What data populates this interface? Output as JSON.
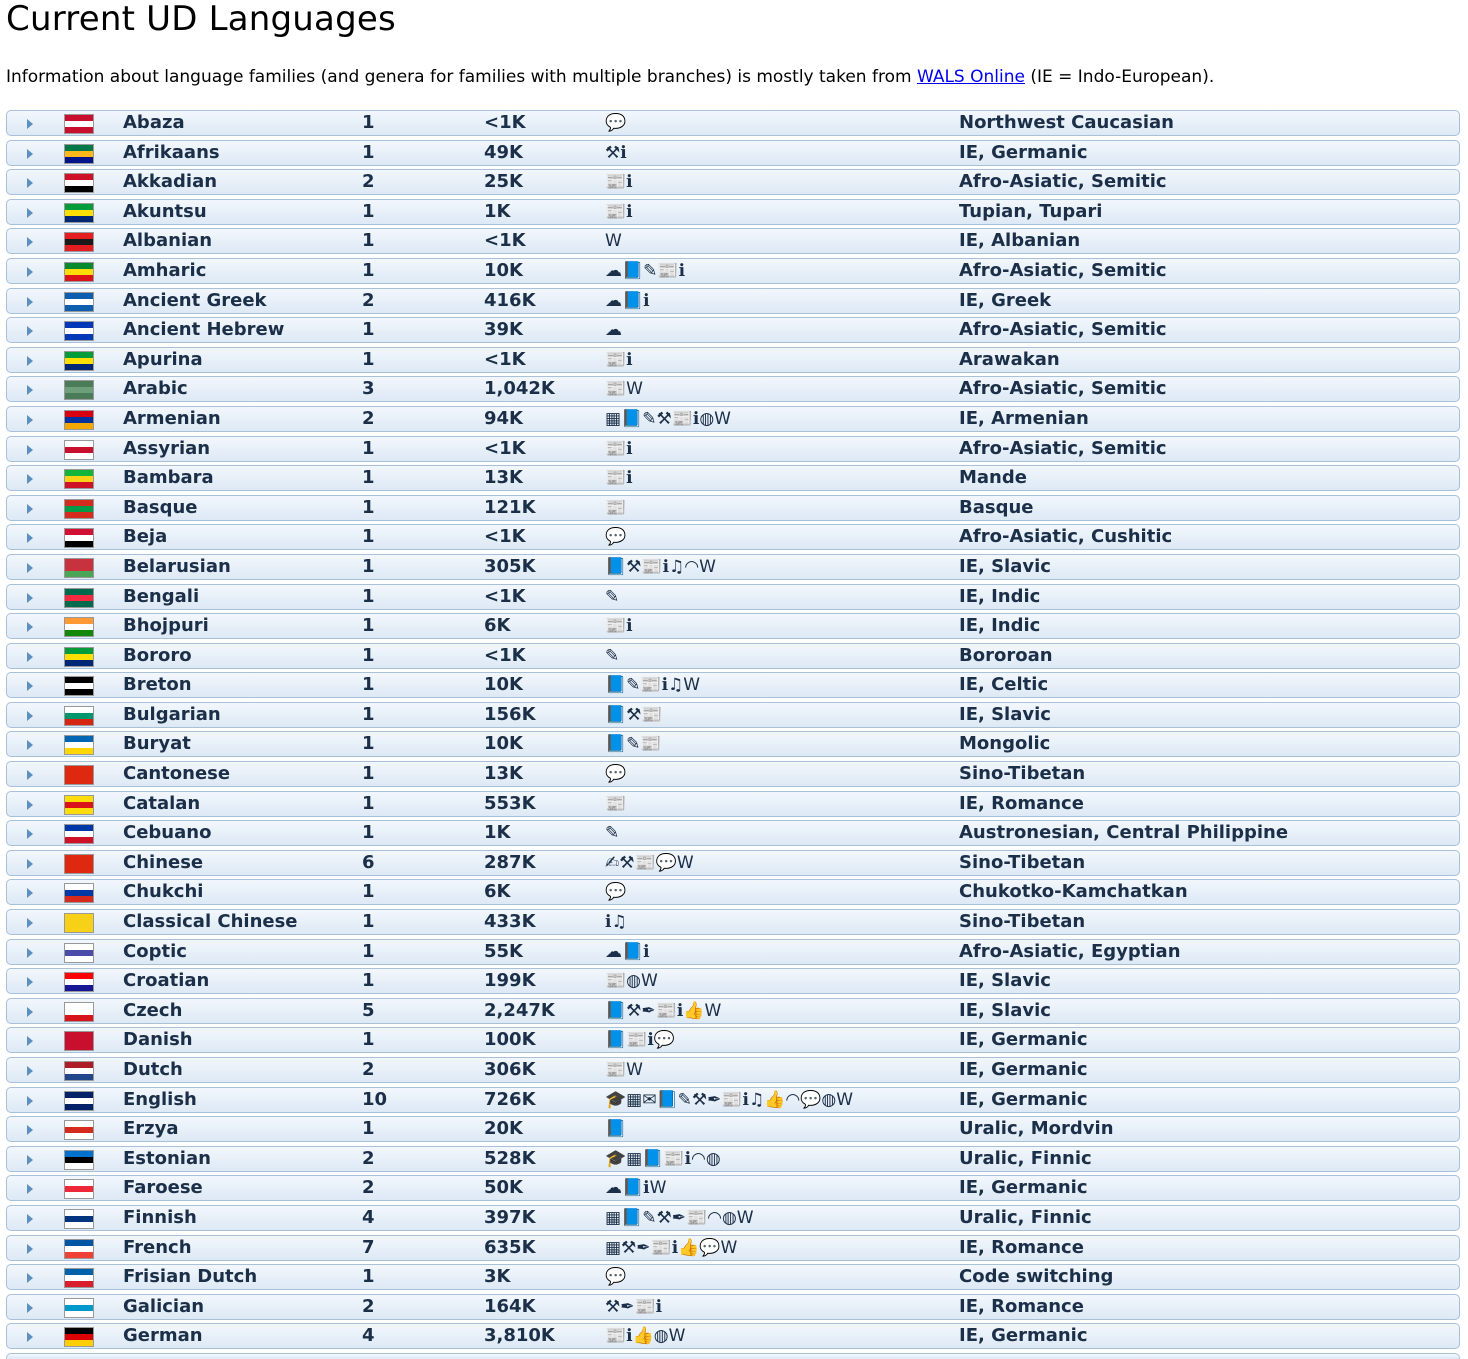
{
  "title": "Current UD Languages",
  "intro": {
    "before": "Information about language families (and genera for families with multiple branches) is mostly taken from ",
    "link": "WALS Online",
    "after": " (IE = Indo-European)."
  },
  "rows": [
    {
      "name": "Abaza",
      "count": "1",
      "size": "<1K",
      "icons": "💬",
      "family": "Northwest Caucasian",
      "flag": [
        "#c8102e",
        "#ffffff",
        "#c8102e"
      ]
    },
    {
      "name": "Afrikaans",
      "count": "1",
      "size": "49K",
      "icons": "⚒ℹ",
      "family": "IE, Germanic",
      "flag": [
        "#007749",
        "#ffb81c",
        "#001489"
      ]
    },
    {
      "name": "Akkadian",
      "count": "2",
      "size": "25K",
      "icons": "📰ℹ",
      "family": "Afro-Asiatic, Semitic",
      "flag": [
        "#ce1126",
        "#ffffff",
        "#000000"
      ]
    },
    {
      "name": "Akuntsu",
      "count": "1",
      "size": "1K",
      "icons": "📰ℹ",
      "family": "Tupian, Tupari",
      "flag": [
        "#009c3b",
        "#ffdf00",
        "#002776"
      ]
    },
    {
      "name": "Albanian",
      "count": "1",
      "size": "<1K",
      "icons": "W",
      "family": "IE, Albanian",
      "flag": [
        "#e41e20",
        "#1a1a1a",
        "#e41e20"
      ]
    },
    {
      "name": "Amharic",
      "count": "1",
      "size": "10K",
      "icons": "☁📘✎📰ℹ",
      "family": "Afro-Asiatic, Semitic",
      "flag": [
        "#078930",
        "#fcdd09",
        "#da121a"
      ]
    },
    {
      "name": "Ancient Greek",
      "count": "2",
      "size": "416K",
      "icons": "☁📘ℹ",
      "family": "IE, Greek",
      "flag": [
        "#0d5eaf",
        "#ffffff",
        "#0d5eaf"
      ]
    },
    {
      "name": "Ancient Hebrew",
      "count": "1",
      "size": "39K",
      "icons": "☁",
      "family": "Afro-Asiatic, Semitic",
      "flag": [
        "#0038b8",
        "#ffffff",
        "#0038b8"
      ]
    },
    {
      "name": "Apurina",
      "count": "1",
      "size": "<1K",
      "icons": "📰ℹ",
      "family": "Arawakan",
      "flag": [
        "#009c3b",
        "#ffdf00",
        "#002776"
      ]
    },
    {
      "name": "Arabic",
      "count": "3",
      "size": "1,042K",
      "icons": "📰W",
      "family": "Afro-Asiatic, Semitic",
      "flag": [
        "#4a7c59",
        "#6f9e7a",
        "#4a7c59"
      ]
    },
    {
      "name": "Armenian",
      "count": "2",
      "size": "94K",
      "icons": "▦📘✎⚒📰ℹ◍W",
      "family": "IE, Armenian",
      "flag": [
        "#d90012",
        "#0033a0",
        "#f2a800"
      ]
    },
    {
      "name": "Assyrian",
      "count": "1",
      "size": "<1K",
      "icons": "📰ℹ",
      "family": "Afro-Asiatic, Semitic",
      "flag": [
        "#ffffff",
        "#c8102e",
        "#ffffff"
      ]
    },
    {
      "name": "Bambara",
      "count": "1",
      "size": "13K",
      "icons": "📰ℹ",
      "family": "Mande",
      "flag": [
        "#14b53a",
        "#fcd116",
        "#ce1126"
      ]
    },
    {
      "name": "Basque",
      "count": "1",
      "size": "121K",
      "icons": "📰",
      "family": "Basque",
      "flag": [
        "#d52b1e",
        "#009b48",
        "#d52b1e"
      ]
    },
    {
      "name": "Beja",
      "count": "1",
      "size": "<1K",
      "icons": "💬",
      "family": "Afro-Asiatic, Cushitic",
      "flag": [
        "#d21034",
        "#ffffff",
        "#000000"
      ]
    },
    {
      "name": "Belarusian",
      "count": "1",
      "size": "305K",
      "icons": "📘⚒📰ℹ♫◠W",
      "family": "IE, Slavic",
      "flag": [
        "#c8313e",
        "#c8313e",
        "#4aa657"
      ]
    },
    {
      "name": "Bengali",
      "count": "1",
      "size": "<1K",
      "icons": "✎",
      "family": "IE, Indic",
      "flag": [
        "#006a4e",
        "#f42a41",
        "#006a4e"
      ]
    },
    {
      "name": "Bhojpuri",
      "count": "1",
      "size": "6K",
      "icons": "📰ℹ",
      "family": "IE, Indic",
      "flag": [
        "#ff9933",
        "#ffffff",
        "#138808"
      ]
    },
    {
      "name": "Bororo",
      "count": "1",
      "size": "<1K",
      "icons": "✎",
      "family": "Bororoan",
      "flag": [
        "#009c3b",
        "#ffdf00",
        "#002776"
      ]
    },
    {
      "name": "Breton",
      "count": "1",
      "size": "10K",
      "icons": "📘✎📰ℹ♫W",
      "family": "IE, Celtic",
      "flag": [
        "#000000",
        "#ffffff",
        "#000000"
      ]
    },
    {
      "name": "Bulgarian",
      "count": "1",
      "size": "156K",
      "icons": "📘⚒📰",
      "family": "IE, Slavic",
      "flag": [
        "#ffffff",
        "#00966e",
        "#d62612"
      ]
    },
    {
      "name": "Buryat",
      "count": "1",
      "size": "10K",
      "icons": "📘✎📰",
      "family": "Mongolic",
      "flag": [
        "#0066b3",
        "#ffffff",
        "#ffd700"
      ]
    },
    {
      "name": "Cantonese",
      "count": "1",
      "size": "13K",
      "icons": "💬",
      "family": "Sino-Tibetan",
      "flag": [
        "#de2910",
        "#de2910",
        "#de2910"
      ]
    },
    {
      "name": "Catalan",
      "count": "1",
      "size": "553K",
      "icons": "📰",
      "family": "IE, Romance",
      "flag": [
        "#fcdd09",
        "#da121a",
        "#fcdd09"
      ]
    },
    {
      "name": "Cebuano",
      "count": "1",
      "size": "1K",
      "icons": "✎",
      "family": "Austronesian, Central Philippine",
      "flag": [
        "#0038a8",
        "#ffffff",
        "#ce1126"
      ]
    },
    {
      "name": "Chinese",
      "count": "6",
      "size": "287K",
      "icons": "✍⚒📰💬W",
      "family": "Sino-Tibetan",
      "flag": [
        "#de2910",
        "#de2910",
        "#de2910"
      ]
    },
    {
      "name": "Chukchi",
      "count": "1",
      "size": "6K",
      "icons": "💬",
      "family": "Chukotko-Kamchatkan",
      "flag": [
        "#ffffff",
        "#0039a6",
        "#d52b1e"
      ]
    },
    {
      "name": "Classical Chinese",
      "count": "1",
      "size": "433K",
      "icons": "ℹ♫",
      "family": "Sino-Tibetan",
      "flag": [
        "#f7d117",
        "#f7d117",
        "#f7d117"
      ]
    },
    {
      "name": "Coptic",
      "count": "1",
      "size": "55K",
      "icons": "☁📘ℹ",
      "family": "Afro-Asiatic, Egyptian",
      "flag": [
        "#ffffff",
        "#4b4ba8",
        "#ffffff"
      ]
    },
    {
      "name": "Croatian",
      "count": "1",
      "size": "199K",
      "icons": "📰◍W",
      "family": "IE, Slavic",
      "flag": [
        "#ff0000",
        "#ffffff",
        "#171796"
      ]
    },
    {
      "name": "Czech",
      "count": "5",
      "size": "2,247K",
      "icons": "📘⚒✒📰ℹ👍W",
      "family": "IE, Slavic",
      "flag": [
        "#ffffff",
        "#ffffff",
        "#d7141a"
      ]
    },
    {
      "name": "Danish",
      "count": "1",
      "size": "100K",
      "icons": "📘📰ℹ💬",
      "family": "IE, Germanic",
      "flag": [
        "#c8102e",
        "#c8102e",
        "#c8102e"
      ]
    },
    {
      "name": "Dutch",
      "count": "2",
      "size": "306K",
      "icons": "📰W",
      "family": "IE, Germanic",
      "flag": [
        "#ae1c28",
        "#ffffff",
        "#21468b"
      ]
    },
    {
      "name": "English",
      "count": "10",
      "size": "726K",
      "icons": "🎓▦✉📘✎⚒✒📰ℹ♫👍◠💬◍W",
      "family": "IE, Germanic",
      "flag": [
        "#012169",
        "#ffffff",
        "#012169"
      ]
    },
    {
      "name": "Erzya",
      "count": "1",
      "size": "20K",
      "icons": "📘",
      "family": "Uralic, Mordvin",
      "flag": [
        "#ffffff",
        "#d52b1e",
        "#ffffff"
      ]
    },
    {
      "name": "Estonian",
      "count": "2",
      "size": "528K",
      "icons": "🎓▦📘📰ℹ◠◍",
      "family": "Uralic, Finnic",
      "flag": [
        "#0072ce",
        "#000000",
        "#ffffff"
      ]
    },
    {
      "name": "Faroese",
      "count": "2",
      "size": "50K",
      "icons": "☁📘ℹW",
      "family": "IE, Germanic",
      "flag": [
        "#ffffff",
        "#ed2939",
        "#ffffff"
      ]
    },
    {
      "name": "Finnish",
      "count": "4",
      "size": "397K",
      "icons": "▦📘✎⚒✒📰◠◍W",
      "family": "Uralic, Finnic",
      "flag": [
        "#ffffff",
        "#003580",
        "#ffffff"
      ]
    },
    {
      "name": "French",
      "count": "7",
      "size": "635K",
      "icons": "▦⚒✒📰ℹ👍💬W",
      "family": "IE, Romance",
      "flag": [
        "#0055a4",
        "#ffffff",
        "#ef4135"
      ]
    },
    {
      "name": "Frisian Dutch",
      "count": "1",
      "size": "3K",
      "icons": "💬",
      "family": "Code switching",
      "flag": [
        "#0062a8",
        "#ffffff",
        "#d91f2e"
      ]
    },
    {
      "name": "Galician",
      "count": "2",
      "size": "164K",
      "icons": "⚒✒📰ℹ",
      "family": "IE, Romance",
      "flag": [
        "#ffffff",
        "#0099cc",
        "#ffffff"
      ]
    },
    {
      "name": "German",
      "count": "4",
      "size": "3,810K",
      "icons": "📰ℹ👍◍W",
      "family": "IE, Germanic",
      "flag": [
        "#000000",
        "#dd0000",
        "#ffce00"
      ]
    }
  ]
}
